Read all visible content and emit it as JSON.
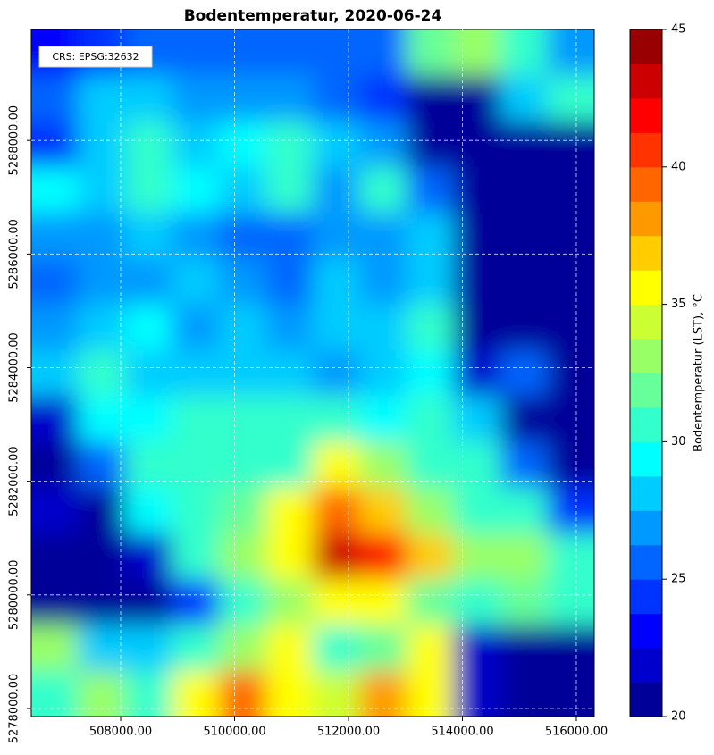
{
  "chart_data": {
    "type": "heatmap",
    "title": "Bodentemperatur, 2020-06-24",
    "annotation": "CRS: EPSG:32632",
    "colorbar_label": "Bodentemperatur (LST), °C",
    "colormap": "jet",
    "color_levels": 20,
    "grid": true,
    "xlim": [
      506431,
      516314
    ],
    "ylim": [
      5277858,
      5289953
    ],
    "xticks": [
      {
        "value": 508000,
        "label": "508000.00"
      },
      {
        "value": 510000,
        "label": "510000.00"
      },
      {
        "value": 512000,
        "label": "512000.00"
      },
      {
        "value": 514000,
        "label": "514000.00"
      },
      {
        "value": 516000,
        "label": "516000.00"
      }
    ],
    "yticks": [
      {
        "value": 5278000,
        "label": "5278000.00"
      },
      {
        "value": 5280000,
        "label": "5280000.00"
      },
      {
        "value": 5282000,
        "label": "5282000.00"
      },
      {
        "value": 5284000,
        "label": "5284000.00"
      },
      {
        "value": 5286000,
        "label": "5286000.00"
      },
      {
        "value": 5288000,
        "label": "5288000.00"
      }
    ],
    "clim": [
      20,
      45
    ],
    "cbar_ticks": [
      20,
      25,
      30,
      35,
      40,
      45
    ],
    "values": [
      [
        23,
        24,
        25,
        26,
        25,
        26,
        25,
        26,
        32,
        33,
        30,
        27
      ],
      [
        26,
        28,
        28,
        27,
        27,
        27,
        26,
        24,
        21,
        20,
        28,
        30
      ],
      [
        24,
        28,
        30,
        28,
        29,
        30,
        28,
        27,
        21,
        20,
        20,
        20
      ],
      [
        29,
        28,
        31,
        29,
        28,
        30,
        27,
        30,
        25,
        20,
        20,
        20
      ],
      [
        27,
        27,
        28,
        27,
        26,
        26,
        27,
        27,
        28,
        20,
        20,
        20
      ],
      [
        26,
        27,
        27,
        28,
        27,
        26,
        28,
        27,
        28,
        21,
        20,
        20
      ],
      [
        27,
        28,
        29,
        27,
        28,
        27,
        28,
        28,
        31,
        21,
        20,
        20
      ],
      [
        28,
        30,
        28,
        28,
        28,
        28,
        27,
        28,
        29,
        22,
        25,
        20
      ],
      [
        22,
        29,
        29,
        31,
        30,
        30,
        31,
        29,
        30,
        28,
        21,
        20
      ],
      [
        21,
        26,
        30,
        30,
        31,
        31,
        36,
        33,
        31,
        30,
        25,
        20
      ],
      [
        22,
        21,
        29,
        31,
        32,
        35,
        39,
        37,
        33,
        31,
        30,
        24
      ],
      [
        20,
        20,
        22,
        31,
        33,
        36,
        43,
        42,
        37,
        33,
        33,
        30
      ],
      [
        21,
        20,
        21,
        24,
        31,
        33,
        36,
        35,
        32,
        31,
        32,
        31
      ],
      [
        33,
        28,
        28,
        31,
        33,
        35,
        31,
        32,
        35,
        22,
        21,
        21
      ],
      [
        31,
        33,
        31,
        35,
        39,
        35,
        34,
        38,
        36,
        22,
        21,
        20
      ]
    ]
  }
}
